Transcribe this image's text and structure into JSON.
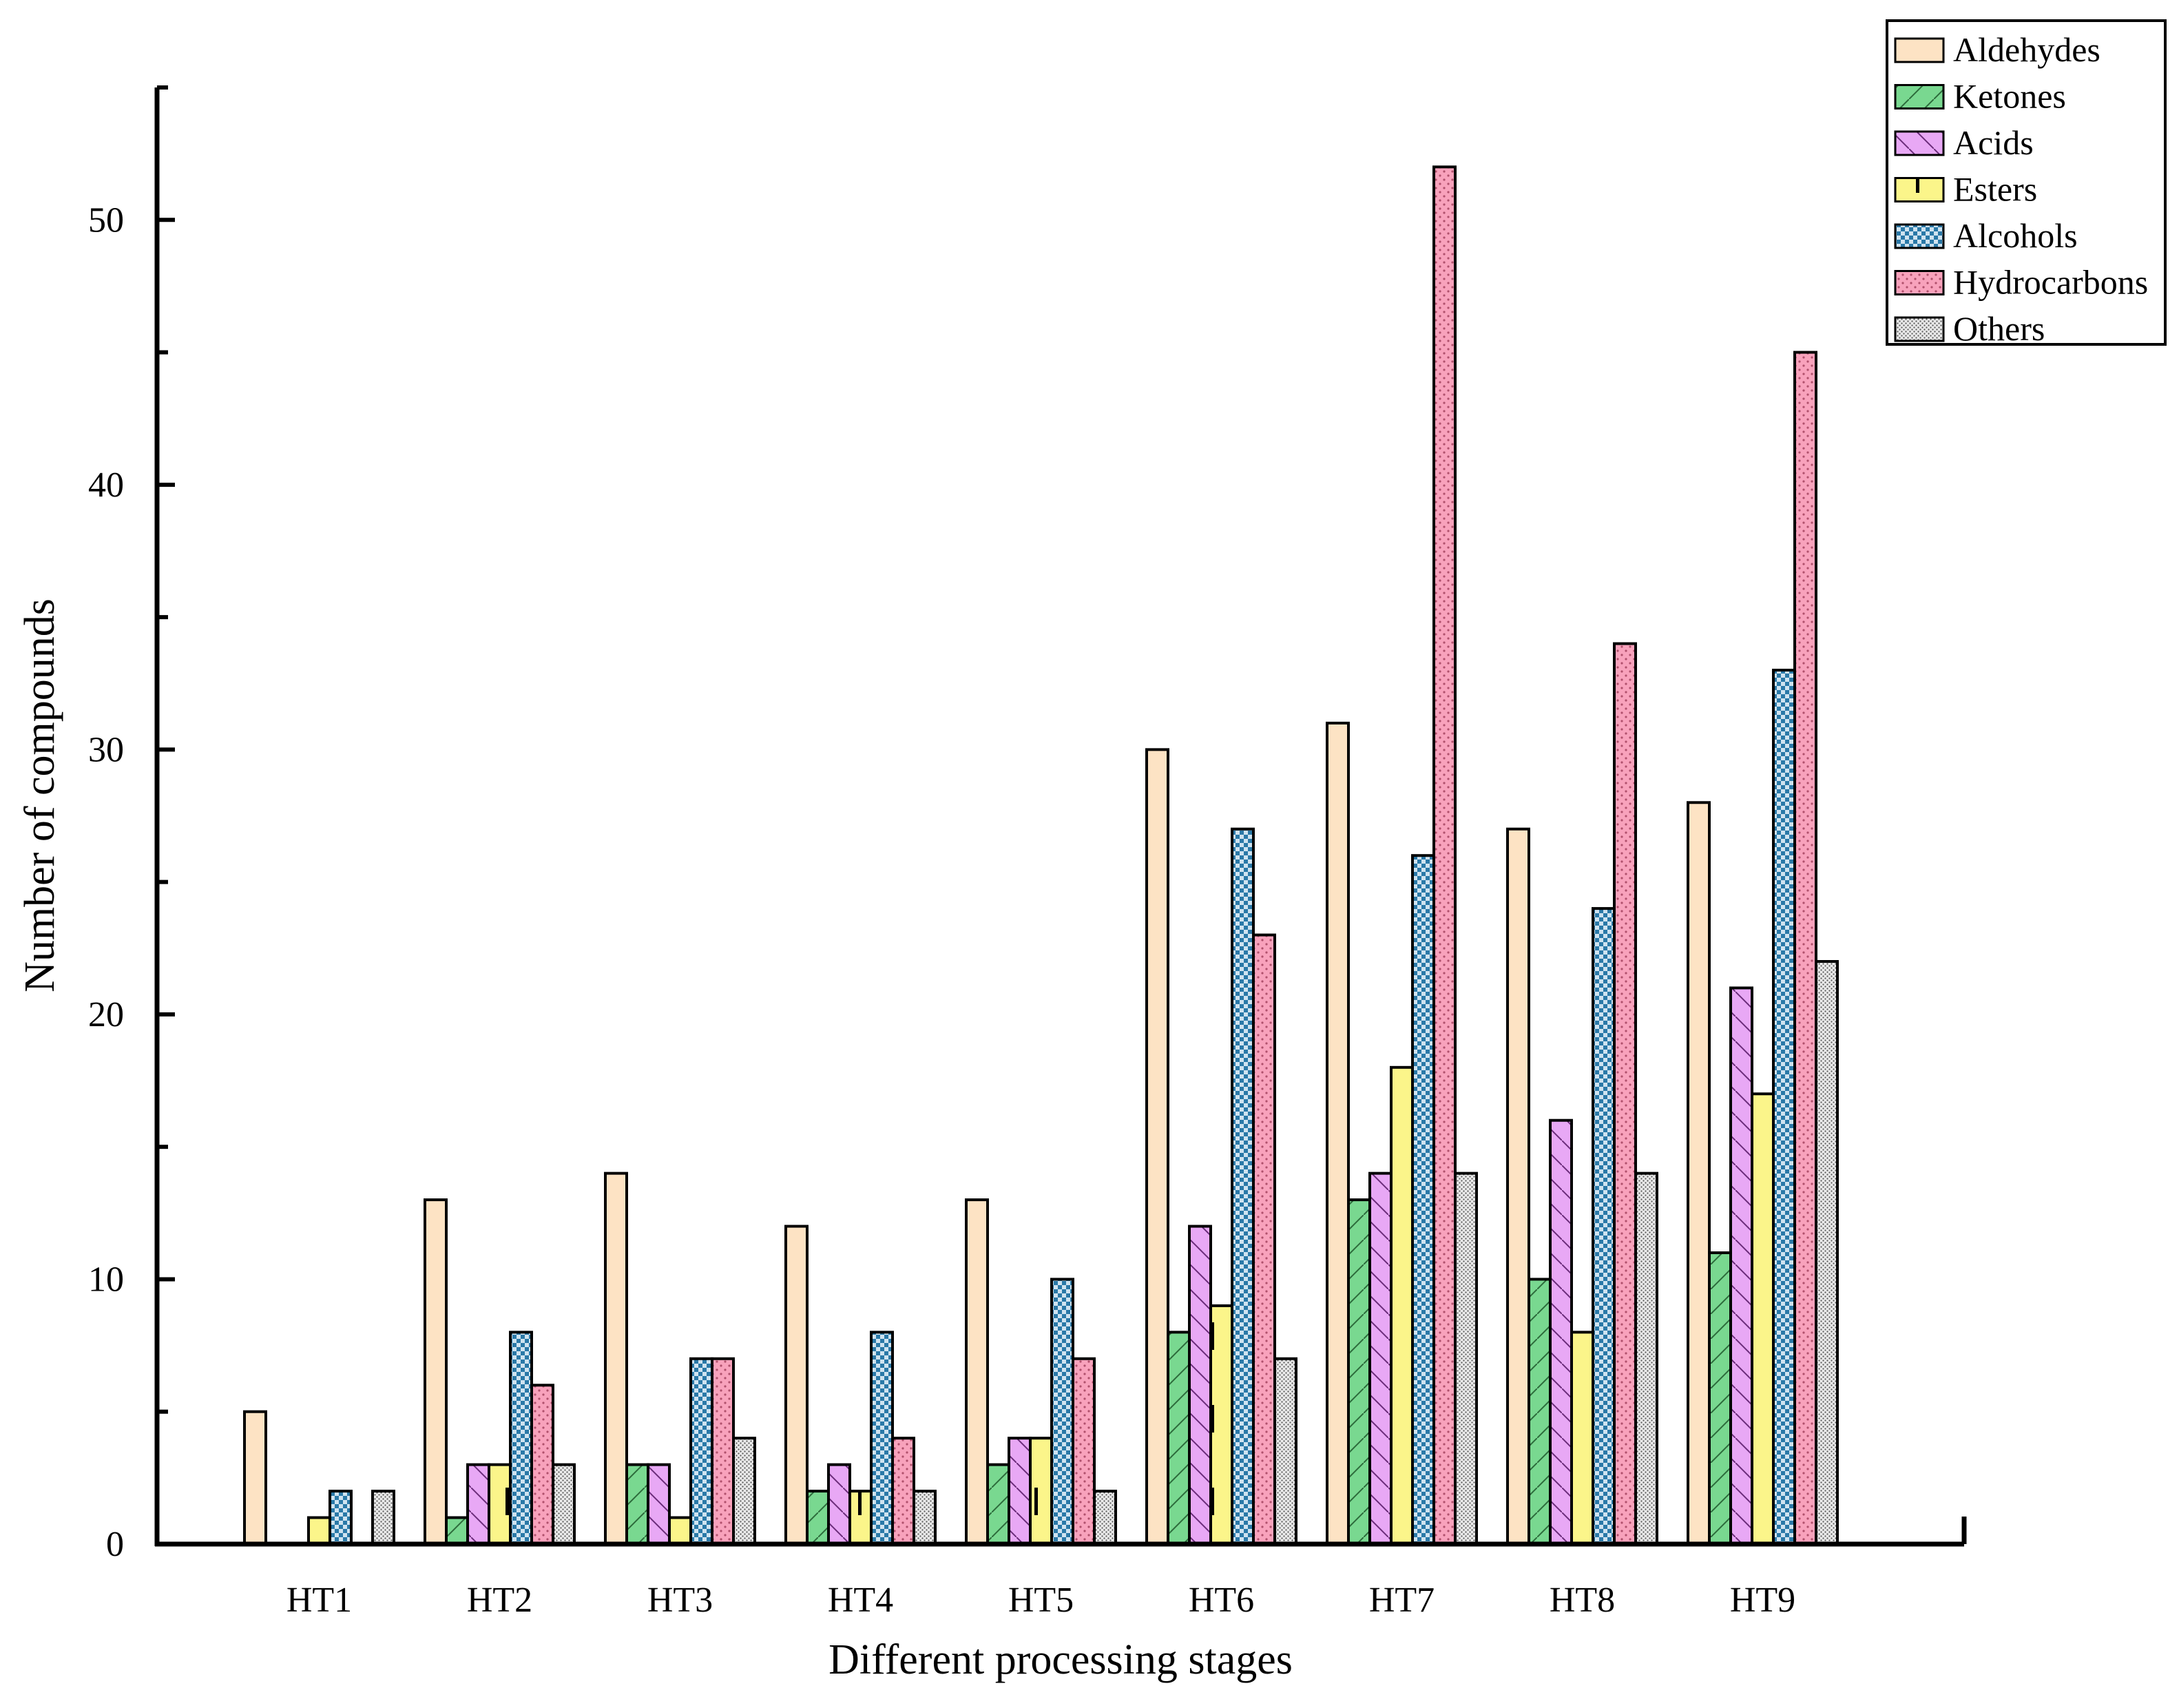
{
  "chart_data": {
    "type": "bar",
    "title": "",
    "xlabel": "Different processing stages",
    "ylabel": "Number of compounds",
    "ylim": [
      0,
      55
    ],
    "yticks": [
      0,
      10,
      20,
      30,
      40,
      50
    ],
    "ytick_labels": [
      "0",
      "10",
      "20",
      "30",
      "40",
      "50"
    ],
    "categories": [
      "HT1",
      "HT2",
      "HT3",
      "HT4",
      "HT5",
      "HT6",
      "HT7",
      "HT8",
      "HT9"
    ],
    "legend_position": "top-right",
    "series": [
      {
        "name": "Aldehydes",
        "label": "Aldehydes",
        "color": "#fde3c4",
        "pattern": "solid",
        "values": [
          5,
          13,
          14,
          12,
          13,
          30,
          31,
          27,
          28
        ]
      },
      {
        "name": "Ketones",
        "label": "Ketones",
        "color": "#79d890",
        "pattern": "diagonal-up",
        "values": [
          0,
          1,
          3,
          2,
          3,
          8,
          13,
          10,
          11
        ]
      },
      {
        "name": "Acids",
        "label": "Acids",
        "color": "#e8a8f5",
        "pattern": "diagonal-down",
        "values": [
          0,
          3,
          3,
          3,
          4,
          12,
          14,
          16,
          21
        ]
      },
      {
        "name": "Esters",
        "label": "Esters",
        "color": "#fbf58a",
        "pattern": "short-vertical",
        "values": [
          1,
          3,
          1,
          2,
          4,
          9,
          18,
          8,
          17
        ]
      },
      {
        "name": "Alcohols",
        "label": "Alcohols",
        "color": "#2a79a8",
        "pattern": "crosshatch",
        "values": [
          2,
          8,
          7,
          8,
          10,
          27,
          26,
          24,
          33
        ]
      },
      {
        "name": "Hydrocarbons",
        "label": "Hydrocarbons",
        "color": "#f8a2bc",
        "pattern": "dots",
        "values": [
          0,
          6,
          7,
          4,
          7,
          23,
          52,
          34,
          45
        ]
      },
      {
        "name": "Others",
        "label": "Others",
        "color": "#e8e8e8",
        "pattern": "fine-dots",
        "values": [
          2,
          3,
          4,
          2,
          2,
          7,
          14,
          14,
          22
        ]
      }
    ]
  }
}
